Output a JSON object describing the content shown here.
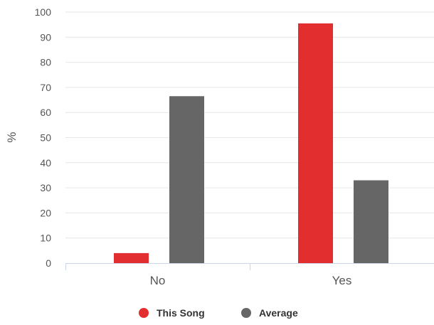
{
  "chart_data": {
    "type": "bar",
    "categories": [
      "No",
      "Yes"
    ],
    "series": [
      {
        "name": "This Song",
        "values": [
          4,
          95.5
        ],
        "color": "#e32e30"
      },
      {
        "name": "Average",
        "values": [
          66.5,
          33
        ],
        "color": "#666666"
      }
    ],
    "ylabel": "%",
    "xlabel": "",
    "ylim": [
      0,
      100
    ],
    "yticks": [
      0,
      10,
      20,
      30,
      40,
      50,
      60,
      70,
      80,
      90,
      100
    ],
    "grid": true,
    "legend": "bottom-center"
  }
}
